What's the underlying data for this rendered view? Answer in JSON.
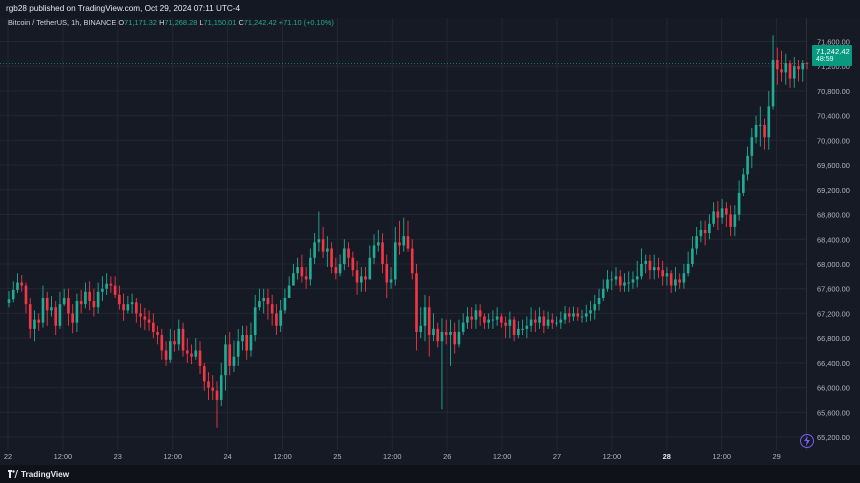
{
  "header": {
    "published_text": "rgb28 published on TradingView.com, Oct 29, 2024 07:11 UTC-4"
  },
  "legend": {
    "symbol": "Bitcoin / TetherUS, 1h, BINANCE",
    "o_label": "O",
    "o_value": "71,171.32",
    "h_label": "H",
    "h_value": "71,268.28",
    "l_label": "L",
    "l_value": "71,150.01",
    "c_label": "C",
    "c_value": "71,242.42",
    "change": "+71.10 (+0.10%)"
  },
  "price_tag": {
    "price": "71,242.42",
    "countdown": "48:59"
  },
  "footer": {
    "brand": "TradingView"
  },
  "colors": {
    "up": "#22ab94",
    "down": "#f23645",
    "background": "#161a25",
    "grid": "#232733",
    "text": "#b2b5be",
    "accent": "#7b5cf5"
  },
  "icons": {
    "logo": "tradingview-logo-icon",
    "bolt": "lightning-bolt-icon"
  },
  "chart_data": {
    "type": "candlestick",
    "title": "Bitcoin / TetherUS, 1h, BINANCE",
    "y_ticks": [
      "71,600.00",
      "71,200.00",
      "70,800.00",
      "70,400.00",
      "70,000.00",
      "69,600.00",
      "69,200.00",
      "68,800.00",
      "68,400.00",
      "68,000.00",
      "67,600.00",
      "67,200.00",
      "66,800.00",
      "66,400.00",
      "66,000.00",
      "65,600.00",
      "65,200.00"
    ],
    "x_ticks": [
      "22",
      "12:00",
      "23",
      "12:00",
      "24",
      "12:00",
      "25",
      "12:00",
      "26",
      "12:00",
      "27",
      "12:00",
      "28",
      "12:00",
      "29"
    ],
    "x_ticks_bold": [
      "28"
    ],
    "ylim": [
      64990,
      71980
    ],
    "last_price": 71242.42,
    "closes": [
      67430,
      67580,
      67700,
      67650,
      67350,
      66950,
      67100,
      67050,
      67450,
      67250,
      67300,
      67000,
      67350,
      67450,
      67200,
      67050,
      67400,
      67350,
      67550,
      67400,
      67300,
      67550,
      67600,
      67680,
      67650,
      67500,
      67350,
      67250,
      67350,
      67380,
      67200,
      67150,
      67100,
      67050,
      66900,
      66850,
      66600,
      66450,
      66750,
      66700,
      66950,
      66600,
      66550,
      66500,
      66600,
      66350,
      66100,
      66000,
      65950,
      65800,
      66200,
      66700,
      66350,
      66500,
      66750,
      66850,
      66600,
      66850,
      67300,
      67400,
      67450,
      67350,
      67200,
      67000,
      67250,
      67450,
      67650,
      67850,
      67950,
      67800,
      67750,
      68100,
      68350,
      68400,
      68200,
      68250,
      67950,
      67850,
      68000,
      68250,
      68100,
      67900,
      67700,
      67800,
      67750,
      68100,
      68300,
      68350,
      68000,
      67700,
      67750,
      68350,
      68300,
      68450,
      68250,
      67850,
      66900,
      67000,
      67300,
      66850,
      66950,
      66750,
      66900,
      66850,
      66900,
      66700,
      66900,
      67050,
      67150,
      67100,
      67250,
      67150,
      67050,
      67100,
      67100,
      67150,
      67050,
      67000,
      67100,
      66850,
      66950,
      66950,
      67000,
      67100,
      67050,
      67150,
      67000,
      67100,
      67050,
      67050,
      67100,
      67200,
      67150,
      67200,
      67150,
      67150,
      67200,
      67250,
      67350,
      67450,
      67600,
      67750,
      67750,
      67800,
      67650,
      67700,
      67700,
      67750,
      67800,
      68000,
      68050,
      67900,
      67950,
      67900,
      67800,
      67850,
      67650,
      67750,
      67700,
      67850,
      68000,
      68250,
      68450,
      68550,
      68500,
      68650,
      68850,
      68750,
      68900,
      68800,
      68600,
      68800,
      69150,
      69450,
      69750,
      70050,
      70250,
      70250,
      70050,
      70550,
      71300,
      71150,
      71100,
      71250,
      71000,
      71200,
      71150,
      71250,
      71242
    ],
    "highs": [
      67560,
      67720,
      67850,
      67820,
      67700,
      67450,
      67250,
      67200,
      67650,
      67550,
      67480,
      67400,
      67550,
      67600,
      67600,
      67350,
      67520,
      67580,
      67700,
      67720,
      67600,
      67700,
      67800,
      67850,
      67800,
      67800,
      67650,
      67520,
      67480,
      67520,
      67450,
      67360,
      67290,
      67250,
      67200,
      67000,
      66950,
      66750,
      66950,
      66930,
      67100,
      67050,
      66800,
      66700,
      66800,
      66750,
      66400,
      66250,
      66200,
      66100,
      66400,
      66850,
      66900,
      66760,
      66950,
      67000,
      67000,
      67050,
      67500,
      67600,
      67600,
      67600,
      67500,
      67350,
      67420,
      67600,
      67800,
      68000,
      68100,
      68150,
      67950,
      68250,
      68500,
      68850,
      68600,
      68450,
      68350,
      68100,
      68150,
      68400,
      68350,
      68200,
      68050,
      67950,
      67950,
      68300,
      68480,
      68550,
      68500,
      68150,
      67950,
      68600,
      68700,
      68750,
      68700,
      68400,
      68000,
      67300,
      67500,
      67480,
      67200,
      67050,
      67120,
      67100,
      67100,
      67050,
      67100,
      67200,
      67300,
      67300,
      67350,
      67350,
      67200,
      67200,
      67250,
      67300,
      67200,
      67150,
      67230,
      67150,
      67080,
      67100,
      67150,
      67300,
      67250,
      67300,
      67250,
      67230,
      67200,
      67150,
      67230,
      67320,
      67300,
      67310,
      67300,
      67260,
      67340,
      67400,
      67500,
      67600,
      67750,
      67900,
      67880,
      67950,
      67900,
      67850,
      67880,
      67880,
      68050,
      68250,
      68150,
      68150,
      68150,
      68100,
      68050,
      67950,
      67900,
      67950,
      67850,
      68000,
      68200,
      68450,
      68600,
      68700,
      68700,
      68800,
      69000,
      69020,
      69050,
      69000,
      68950,
      68950,
      69350,
      69550,
      69900,
      70200,
      70400,
      70550,
      70350,
      70800,
      71700,
      71500,
      71450,
      71400,
      71300,
      71350,
      71300,
      71300,
      71268
    ],
    "lows": [
      67300,
      67380,
      67530,
      67550,
      67200,
      66800,
      66750,
      66920,
      66970,
      67000,
      67150,
      66850,
      66950,
      67320,
      67000,
      66880,
      66900,
      67200,
      67280,
      67250,
      67150,
      67200,
      67400,
      67500,
      67530,
      67450,
      67260,
      67080,
      67200,
      67200,
      67050,
      66970,
      66930,
      66920,
      66800,
      66700,
      66450,
      66350,
      66400,
      66580,
      66600,
      66500,
      66400,
      66380,
      66450,
      66220,
      65950,
      65800,
      65800,
      65350,
      65700,
      65950,
      66200,
      66250,
      66350,
      66600,
      66450,
      66500,
      66750,
      67250,
      67200,
      67100,
      67000,
      66850,
      66900,
      67200,
      67450,
      67700,
      67750,
      67700,
      67600,
      67650,
      68000,
      68200,
      68100,
      67950,
      67850,
      67750,
      67800,
      67900,
      67950,
      67800,
      67500,
      67550,
      67550,
      67750,
      68000,
      68200,
      67850,
      67450,
      67600,
      67650,
      68150,
      68200,
      68200,
      67750,
      66600,
      66800,
      66750,
      66500,
      66750,
      66650,
      65650,
      66700,
      66350,
      66550,
      66650,
      66850,
      66950,
      66950,
      66950,
      67000,
      66950,
      66950,
      66950,
      67000,
      66970,
      66800,
      66800,
      66750,
      66800,
      66850,
      66800,
      66900,
      66900,
      66950,
      66880,
      66950,
      66950,
      66990,
      66950,
      67030,
      67050,
      67080,
      67080,
      67050,
      67060,
      67080,
      67100,
      67250,
      67400,
      67550,
      67580,
      67650,
      67550,
      67550,
      67550,
      67600,
      67620,
      67750,
      67850,
      67750,
      67750,
      67770,
      67650,
      67650,
      67530,
      67550,
      67600,
      67600,
      67800,
      67950,
      68150,
      68350,
      68300,
      68400,
      68600,
      68550,
      68650,
      68600,
      68450,
      68450,
      68700,
      69100,
      69350,
      69550,
      69950,
      69900,
      69850,
      69850,
      70500,
      70900,
      70950,
      70900,
      70850,
      70850,
      70950,
      70950,
      71150
    ]
  }
}
